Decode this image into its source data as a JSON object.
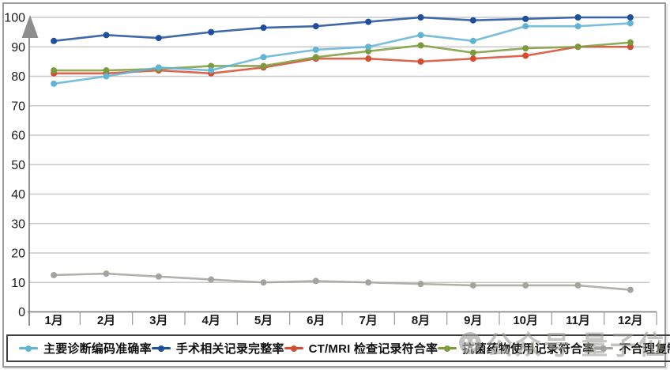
{
  "chart_data": {
    "type": "line",
    "title": "",
    "xlabel": "",
    "ylabel": "",
    "x": [
      "1月",
      "2月",
      "3月",
      "4月",
      "5月",
      "6月",
      "7月",
      "8月",
      "9月",
      "10月",
      "11月",
      "12月"
    ],
    "yticks": [
      0,
      10,
      20,
      30,
      40,
      50,
      60,
      70,
      80,
      90,
      100
    ],
    "ylim": [
      0,
      100
    ],
    "grid": true,
    "legend_position": "bottom",
    "series": [
      {
        "name": "主要诊断编码准确率",
        "color": "#62b4d5",
        "values": [
          77.5,
          80,
          83,
          82,
          86.5,
          89,
          90,
          94,
          92,
          97,
          97,
          98
        ]
      },
      {
        "name": "手术相关记录完整率",
        "color": "#1d4f9c",
        "values": [
          92,
          94,
          93,
          95,
          96.5,
          97,
          98.5,
          100,
          99,
          99.5,
          100,
          100
        ]
      },
      {
        "name": "CT/MRI 检查记录符合率",
        "color": "#d64c32",
        "values": [
          81,
          81,
          82,
          81,
          83,
          86,
          86,
          85,
          86,
          87,
          90,
          90
        ]
      },
      {
        "name": "抗菌药物使用记录符合率",
        "color": "#7c9b3d",
        "values": [
          82,
          82,
          82.5,
          83.5,
          83.5,
          86.5,
          88.5,
          90.5,
          88,
          89.5,
          90,
          91.5
        ]
      },
      {
        "name": "不合理复制病历发生率",
        "color": "#a4a49e",
        "values": [
          12.5,
          13,
          12,
          11,
          10,
          10.5,
          10,
          9.5,
          9,
          9,
          9,
          7.5
        ]
      }
    ],
    "style": {
      "grid_color": "#c9c9c9",
      "axis_color": "#787878",
      "tick_label_color": "#1c1c1c",
      "arrow_color": "#8d8d8d"
    }
  },
  "watermark": {
    "icon": "smiley-face",
    "text": "公众号 量子位"
  }
}
